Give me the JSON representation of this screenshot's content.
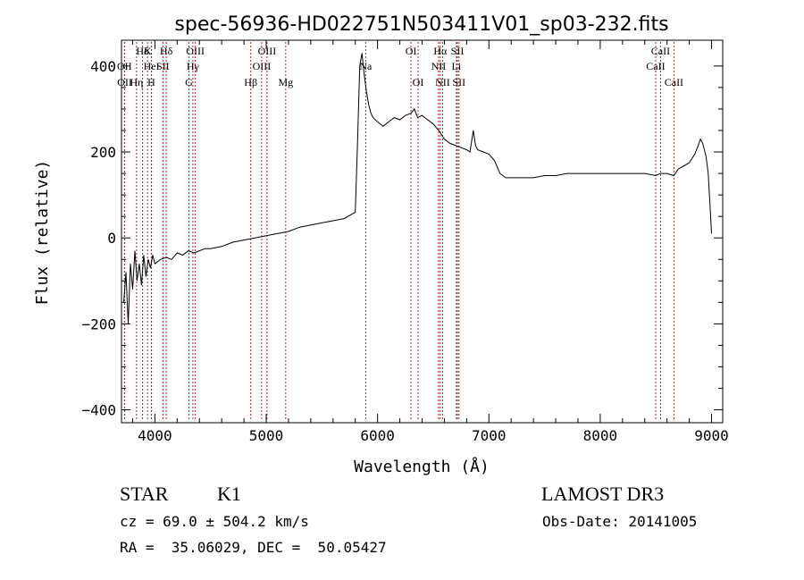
{
  "chart_data": {
    "type": "line",
    "title": "spec-56936-HD022751N503411V01_sp03-232.fits",
    "xlabel": "Wavelength (Å)",
    "ylabel": "Flux (relative)",
    "xlim": [
      3700,
      9100
    ],
    "ylim": [
      -430,
      460
    ],
    "xticks": [
      4000,
      5000,
      6000,
      7000,
      8000,
      9000
    ],
    "yticks": [
      -400,
      -200,
      0,
      200,
      400
    ],
    "tick_labels": {
      "x": [
        "4000",
        "5000",
        "6000",
        "7000",
        "8000",
        "9000"
      ],
      "y": [
        "−400",
        "−200",
        "0",
        "200",
        "400"
      ]
    },
    "line_color": "#000000",
    "marker_color": "#b22222",
    "grid": false,
    "legend": "none",
    "series": [
      {
        "x": [
          3720,
          3740,
          3760,
          3780,
          3800,
          3820,
          3840,
          3860,
          3880,
          3900,
          3920,
          3940,
          3960,
          3980,
          4000,
          4050,
          4100,
          4150,
          4200,
          4250,
          4300,
          4350,
          4400,
          4450,
          4500,
          4600,
          4700,
          4800,
          4900,
          5000,
          5100,
          5200,
          5300,
          5400,
          5500,
          5600,
          5700,
          5800,
          5820,
          5840,
          5860,
          5880,
          5900,
          5920,
          5940,
          5960,
          6000,
          6050,
          6100,
          6150,
          6200,
          6250,
          6300,
          6330,
          6360,
          6400,
          6450,
          6500,
          6550,
          6600,
          6650,
          6700,
          6750,
          6800,
          6830,
          6860,
          6880,
          6900,
          6950,
          7000,
          7050,
          7100,
          7150,
          7200,
          7300,
          7400,
          7500,
          7600,
          7700,
          7800,
          7900,
          8000,
          8100,
          8200,
          8300,
          8400,
          8500,
          8540,
          8600,
          8660,
          8700,
          8800,
          8850,
          8880,
          8900,
          8920,
          8950,
          8970,
          8985,
          9000
        ],
        "y": [
          -150,
          -80,
          -200,
          -60,
          -120,
          -30,
          -100,
          -60,
          -110,
          -40,
          -90,
          -50,
          -70,
          -40,
          -60,
          -50,
          -45,
          -50,
          -35,
          -40,
          -30,
          -35,
          -30,
          -25,
          -25,
          -20,
          -10,
          -5,
          0,
          5,
          10,
          15,
          25,
          30,
          35,
          40,
          45,
          60,
          220,
          400,
          430,
          380,
          340,
          310,
          290,
          280,
          270,
          260,
          270,
          280,
          275,
          285,
          290,
          300,
          280,
          285,
          275,
          265,
          250,
          230,
          220,
          215,
          210,
          205,
          200,
          250,
          215,
          205,
          200,
          195,
          180,
          150,
          140,
          140,
          140,
          140,
          145,
          145,
          150,
          150,
          150,
          150,
          150,
          150,
          150,
          150,
          145,
          150,
          150,
          145,
          160,
          175,
          195,
          215,
          230,
          220,
          190,
          150,
          80,
          10
        ]
      }
    ],
    "line_markers": [
      {
        "label": "Hδ",
        "x": 4102,
        "row": 0
      },
      {
        "label": "Hδ",
        "x": 3889,
        "row": 0
      },
      {
        "label": "K",
        "x": 3934,
        "row": 0
      },
      {
        "label": "OIII",
        "x": 4363,
        "row": 0
      },
      {
        "label": "OIII",
        "x": 5007,
        "row": 0
      },
      {
        "label": "OI",
        "x": 6300,
        "row": 0
      },
      {
        "label": "Hα",
        "x": 6563,
        "row": 0
      },
      {
        "label": "SII",
        "x": 6717,
        "row": 0
      },
      {
        "label": "CaII",
        "x": 8542,
        "row": 0
      },
      {
        "label": "OII",
        "x": 3727,
        "row": 1
      },
      {
        "label": "HeI",
        "x": 3970,
        "row": 1
      },
      {
        "label": "SII",
        "x": 4072,
        "row": 1
      },
      {
        "label": "Hγ",
        "x": 4341,
        "row": 1
      },
      {
        "label": "OIII",
        "x": 4959,
        "row": 1
      },
      {
        "label": "Na",
        "x": 5893,
        "row": 1
      },
      {
        "label": "NII",
        "x": 6548,
        "row": 1
      },
      {
        "label": "Li",
        "x": 6708,
        "row": 1
      },
      {
        "label": "CaII",
        "x": 8498,
        "row": 1
      },
      {
        "label": "OII",
        "x": 3729,
        "row": 2
      },
      {
        "label": "Hη",
        "x": 3835,
        "row": 2
      },
      {
        "label": "H",
        "x": 3968,
        "row": 2
      },
      {
        "label": "G",
        "x": 4305,
        "row": 2
      },
      {
        "label": "Hβ",
        "x": 4861,
        "row": 2
      },
      {
        "label": "Mg",
        "x": 5175,
        "row": 2
      },
      {
        "label": "OI",
        "x": 6364,
        "row": 2
      },
      {
        "label": "NII",
        "x": 6584,
        "row": 2
      },
      {
        "label": "SII",
        "x": 6731,
        "row": 2
      },
      {
        "label": "CaII",
        "x": 8662,
        "row": 2
      }
    ]
  },
  "info": {
    "class": "STAR",
    "subclass": "K1",
    "survey": "LAMOST DR3",
    "cz": "cz = 69.0 ± 504.2 km/s",
    "obs_date": "Obs-Date: 20141005",
    "coords": "RA =  35.06029, DEC =  50.05427"
  }
}
